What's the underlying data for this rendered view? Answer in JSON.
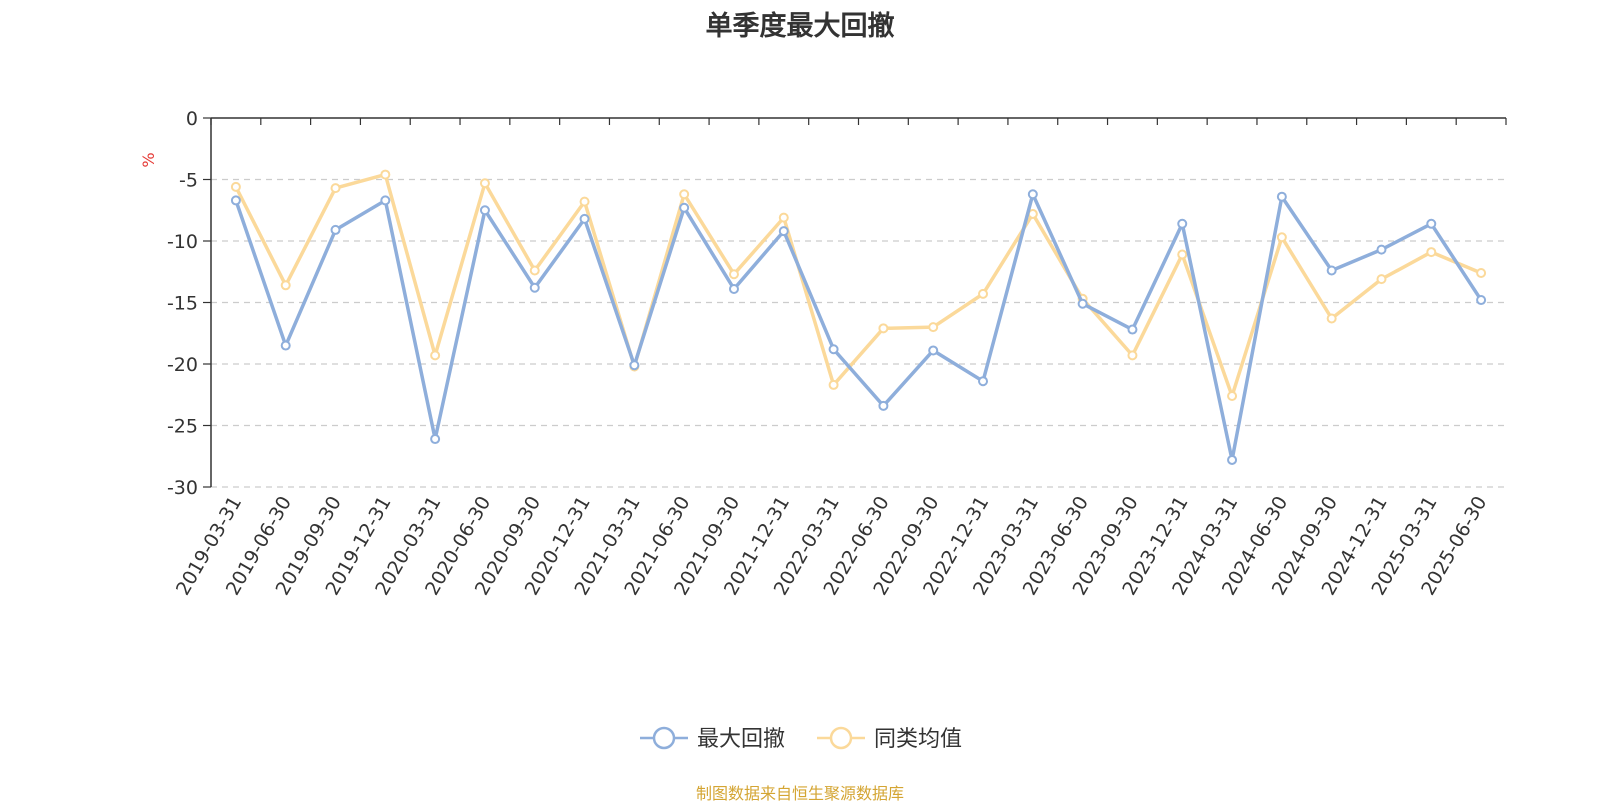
{
  "chart_data": {
    "type": "line",
    "title": "单季度最大回撤",
    "ylabel": "%",
    "ylim": [
      -30,
      0
    ],
    "yticks": [
      0,
      -5,
      -10,
      -15,
      -20,
      -25,
      -30
    ],
    "grid": true,
    "legend_position": "bottom",
    "categories": [
      "2019-03-31",
      "2019-06-30",
      "2019-09-30",
      "2019-12-31",
      "2020-03-31",
      "2020-06-30",
      "2020-09-30",
      "2020-12-31",
      "2021-03-31",
      "2021-06-30",
      "2021-09-30",
      "2021-12-31",
      "2022-03-31",
      "2022-06-30",
      "2022-09-30",
      "2022-12-31",
      "2023-03-31",
      "2023-06-30",
      "2023-09-30",
      "2023-12-31",
      "2024-03-31",
      "2024-06-30",
      "2024-09-30",
      "2024-12-31",
      "2025-03-31",
      "2025-06-30"
    ],
    "series": [
      {
        "name": "最大回撤",
        "color": "#8eaedb",
        "values": [
          -6.7,
          -18.5,
          -9.1,
          -6.7,
          -26.1,
          -7.5,
          -13.8,
          -8.2,
          -20.1,
          -7.3,
          -13.9,
          -9.2,
          -18.8,
          -23.4,
          -18.9,
          -21.4,
          -6.2,
          -15.1,
          -17.2,
          -8.6,
          -27.8,
          -6.4,
          -12.4,
          -10.7,
          -8.6,
          -14.8
        ]
      },
      {
        "name": "同类均值",
        "color": "#fbd99a",
        "values": [
          -5.6,
          -13.6,
          -5.7,
          -4.6,
          -19.3,
          -5.3,
          -12.4,
          -6.8,
          -20.2,
          -6.2,
          -12.7,
          -8.1,
          -21.7,
          -17.1,
          -17.0,
          -14.3,
          -7.8,
          -14.7,
          -19.3,
          -11.1,
          -22.6,
          -9.7,
          -16.3,
          -13.1,
          -10.9,
          -12.6
        ]
      }
    ]
  },
  "colors": {
    "y_unit": "#e53935",
    "axis": "#333333",
    "grid": "#cccccc",
    "source_note": "#d4a533"
  },
  "source_note": "制图数据来自恒生聚源数据库"
}
